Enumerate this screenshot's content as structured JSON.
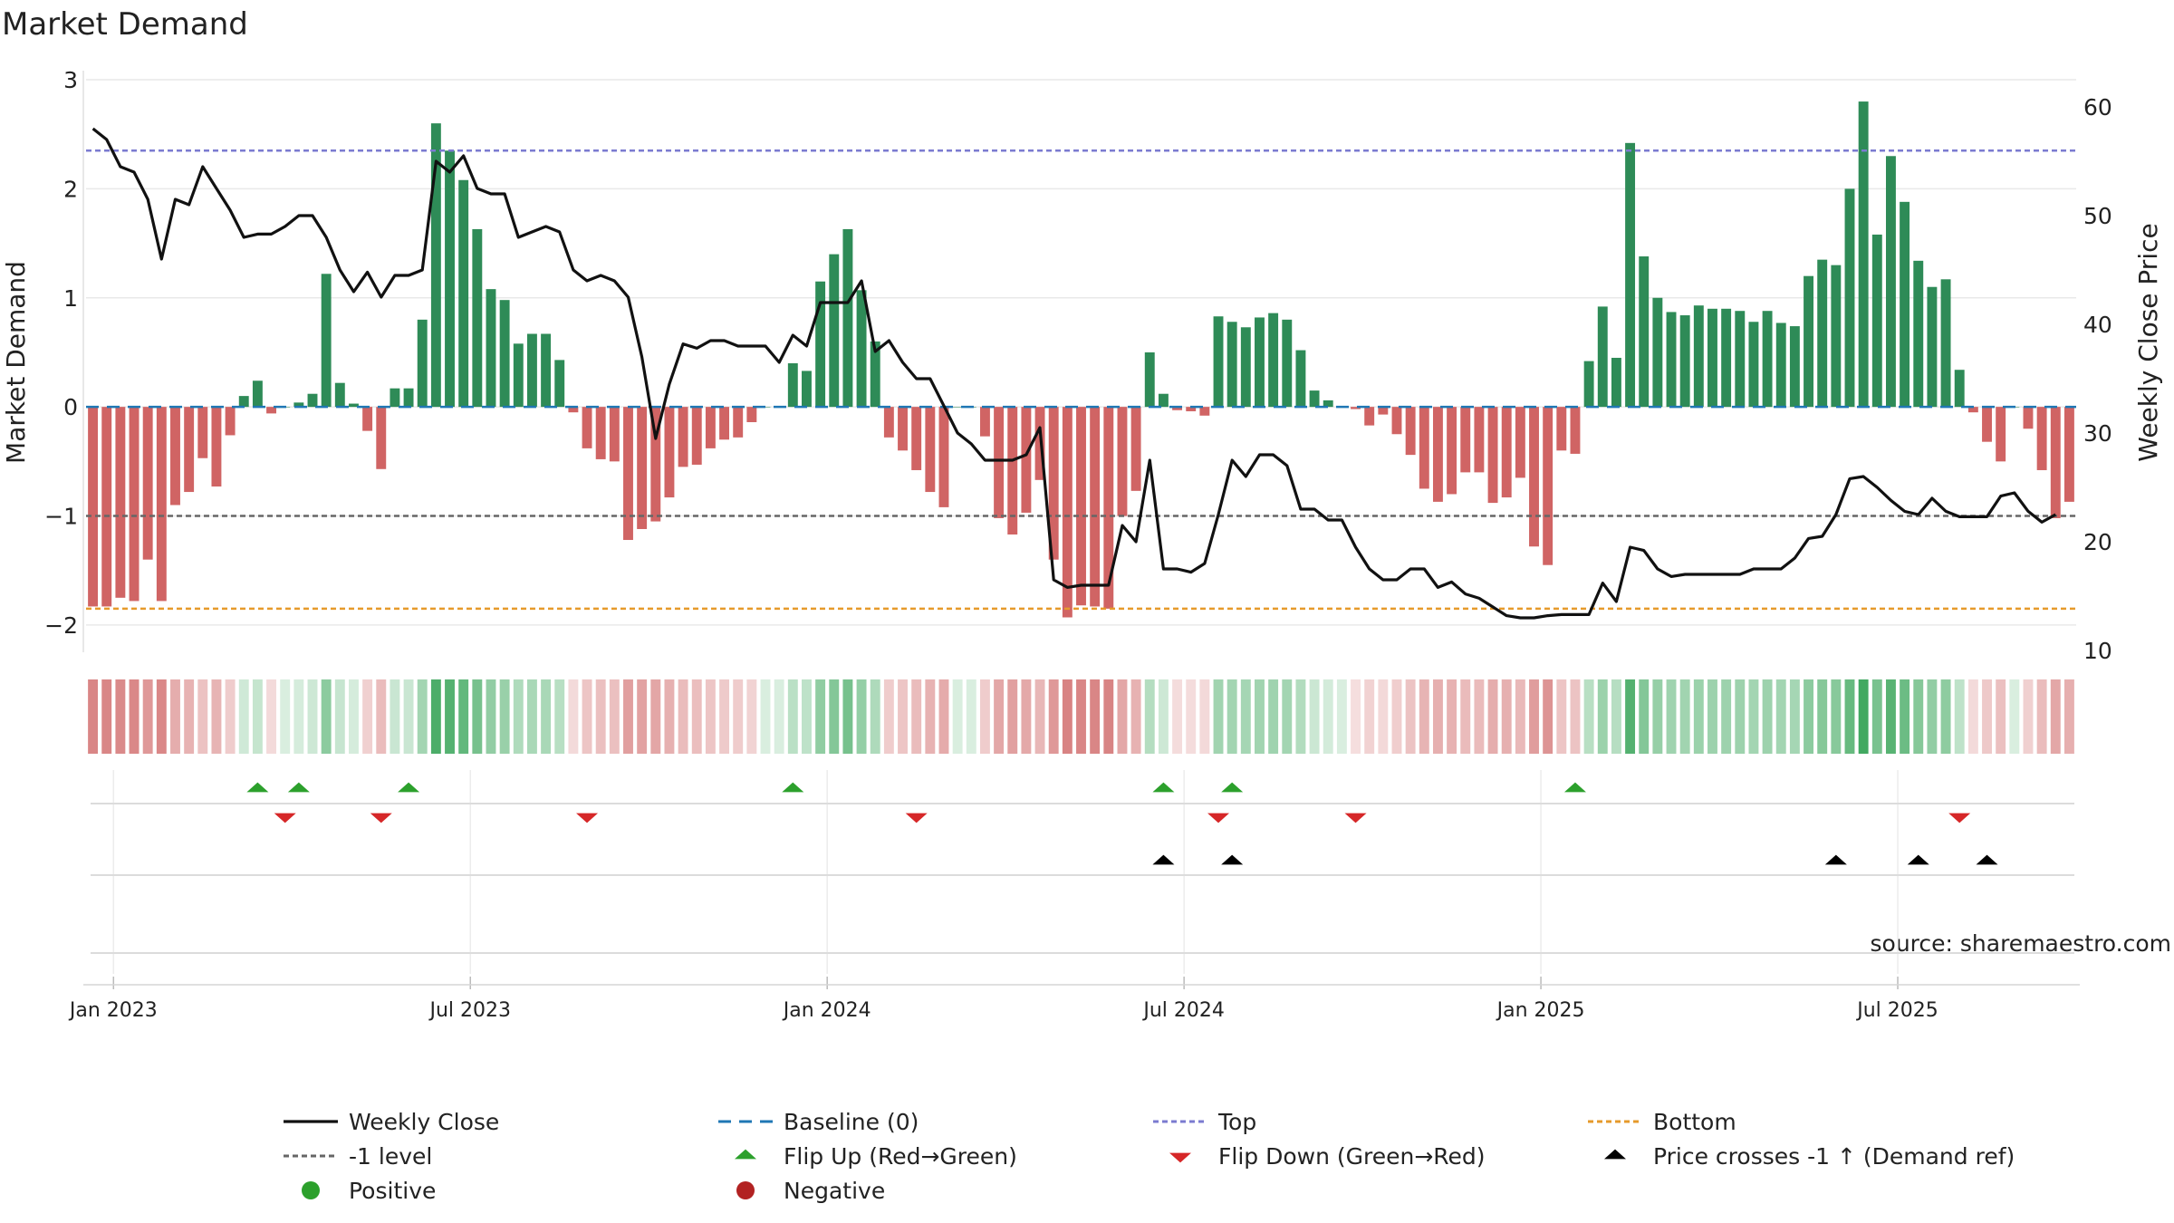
{
  "chart_data": {
    "type": "bar",
    "title": "Market Demand",
    "ylabel": "Market Demand",
    "y2label": "Weekly Close Price",
    "source": "source: sharemaestro.com",
    "ylim": [
      -2.2,
      3.0
    ],
    "y2lim": [
      10,
      62
    ],
    "yticks": [
      "3",
      "2",
      "1",
      "0",
      "−1",
      "−2"
    ],
    "ytick_values": [
      3,
      2,
      1,
      0,
      -1,
      -2
    ],
    "y2ticks": [
      "60",
      "50",
      "40",
      "30",
      "20",
      "10"
    ],
    "y2tick_values": [
      60,
      50,
      40,
      30,
      20,
      10
    ],
    "xticks": [
      "Jan 2023",
      "Jul 2023",
      "Jan 2024",
      "Jul 2024",
      "Jan 2025",
      "Jul 2025"
    ],
    "xtick_weeks": [
      1.5,
      27.5,
      53.5,
      79.5,
      105.5,
      131.5
    ],
    "levels": {
      "top": 2.35,
      "minus_one": -1.0,
      "bottom": -1.85
    },
    "demand": [
      -1.83,
      -1.83,
      -1.75,
      -1.78,
      -1.4,
      -1.78,
      -0.9,
      -0.78,
      -0.47,
      -0.73,
      -0.26,
      0.1,
      0.24,
      -0.06,
      0,
      0.04,
      0.12,
      1.22,
      0.22,
      0.03,
      -0.22,
      -0.57,
      0.17,
      0.17,
      0.8,
      2.6,
      2.35,
      2.08,
      1.63,
      1.08,
      0.98,
      0.58,
      0.67,
      0.67,
      0.43,
      -0.05,
      -0.38,
      -0.48,
      -0.5,
      -1.22,
      -1.12,
      -1.05,
      -0.83,
      -0.55,
      -0.53,
      -0.38,
      -0.3,
      -0.28,
      -0.14,
      0,
      0,
      0.4,
      0.33,
      1.15,
      1.4,
      1.63,
      1.07,
      0.6,
      -0.28,
      -0.4,
      -0.58,
      -0.78,
      -0.92,
      0,
      0,
      -0.27,
      -1.02,
      -1.17,
      -0.97,
      -0.67,
      -1.4,
      -1.93,
      -1.82,
      -1.83,
      -1.85,
      -1.0,
      -0.77,
      0.5,
      0.12,
      -0.03,
      -0.04,
      -0.08,
      0.83,
      0.78,
      0.73,
      0.82,
      0.86,
      0.8,
      0.52,
      0.15,
      0.06,
      0,
      -0.02,
      -0.17,
      -0.07,
      -0.25,
      -0.44,
      -0.75,
      -0.87,
      -0.8,
      -0.6,
      -0.6,
      -0.88,
      -0.83,
      -0.65,
      -1.28,
      -1.45,
      -0.4,
      -0.43,
      0.42,
      0.92,
      0.45,
      2.42,
      1.38,
      1.0,
      0.87,
      0.84,
      0.93,
      0.9,
      0.9,
      0.88,
      0.78,
      0.88,
      0.77,
      0.74,
      1.2,
      1.35,
      1.3,
      2.0,
      2.8,
      1.58,
      2.3,
      1.88,
      1.34,
      1.1,
      1.17,
      0.34,
      -0.05,
      -0.32,
      -0.5,
      0,
      -0.2,
      -0.58,
      -1.02,
      -0.87
    ],
    "price": [
      58,
      57,
      54.5,
      54,
      51.5,
      46,
      51.5,
      51,
      54.5,
      52.5,
      50.5,
      48,
      48.3,
      48.3,
      49,
      50,
      50,
      48,
      45,
      43,
      44.8,
      42.5,
      44.5,
      44.5,
      45,
      55,
      54,
      55.5,
      52.5,
      52,
      52,
      48,
      48.5,
      49,
      48.5,
      45,
      44,
      44.5,
      44,
      42.5,
      37,
      29.5,
      34.5,
      38.2,
      37.8,
      38.5,
      38.5,
      38,
      38,
      38,
      36.5,
      39,
      38,
      42,
      42,
      42,
      44,
      37.5,
      38.5,
      36.5,
      35,
      35,
      32.5,
      30,
      29,
      27.5,
      27.5,
      27.5,
      28,
      30.5,
      16.5,
      15.8,
      16,
      16,
      16,
      21.5,
      20,
      27.5,
      17.5,
      17.5,
      17.2,
      18,
      22.5,
      27.5,
      26,
      28,
      28,
      27,
      23,
      23,
      22,
      22,
      19.5,
      17.5,
      16.5,
      16.5,
      17.5,
      17.5,
      15.8,
      16.3,
      15.2,
      14.8,
      14,
      13.2,
      13,
      13,
      13.2,
      13.3,
      13.3,
      13.3,
      16.2,
      14.5,
      19.5,
      19.2,
      17.5,
      16.8,
      17,
      17,
      17,
      17,
      17,
      17.5,
      17.5,
      17.5,
      18.5,
      20.3,
      20.5,
      22.5,
      25.8,
      26,
      25,
      23.8,
      22.8,
      22.5,
      24,
      22.8,
      22.3,
      22.3,
      22.3,
      24.2,
      24.5,
      22.8,
      21.8,
      22.5
    ],
    "flip_up_weeks": [
      12,
      15,
      23,
      51,
      78,
      83,
      108
    ],
    "flip_down_weeks": [
      14,
      21,
      36,
      60,
      82,
      92,
      136
    ],
    "price_cross_weeks": [
      78,
      83,
      127,
      133,
      138
    ],
    "legend": {
      "weekly_close": "Weekly Close",
      "baseline": "Baseline (0)",
      "top": "Top",
      "bottom": "Bottom",
      "minus_one": "-1 level",
      "flip_up": "Flip Up (Red→Green)",
      "flip_down": "Flip Down (Green→Red)",
      "price_cross": "Price crosses -1 ↑ (Demand ref)",
      "positive": "Positive",
      "negative": "Negative"
    },
    "colors": {
      "positive": "#2e8b57",
      "negative": "#cd5c5c",
      "price": "#111111",
      "baseline": "#1f77b4",
      "top": "#7b7bd0",
      "minus_one": "#666666",
      "bottom": "#e69a2b",
      "flip_up": "#2ca02c",
      "flip_down": "#d62728",
      "cross": "#000000",
      "legend_positive": "#2ca02c",
      "legend_negative": "#b22222"
    }
  }
}
